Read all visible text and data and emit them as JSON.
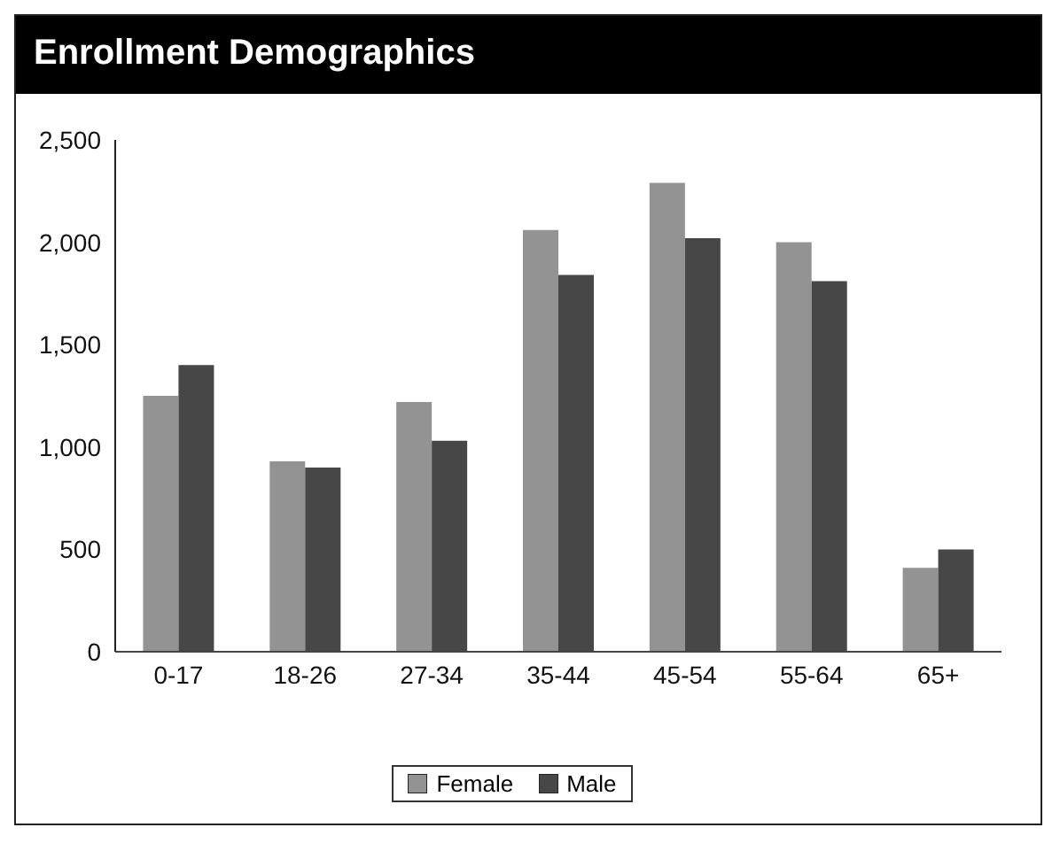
{
  "chart_data": {
    "type": "bar",
    "title": "Enrollment Demographics",
    "categories": [
      "0-17",
      "18-26",
      "27-34",
      "35-44",
      "45-54",
      "55-64",
      "65+"
    ],
    "series": [
      {
        "name": "Female",
        "color": "#939393",
        "values": [
          1250,
          930,
          1220,
          2060,
          2290,
          2000,
          410
        ]
      },
      {
        "name": "Male",
        "color": "#474747",
        "values": [
          1400,
          900,
          1030,
          1840,
          2020,
          1810,
          500
        ]
      }
    ],
    "ylim": [
      0,
      2500
    ],
    "yticks": [
      0,
      {
        "value": 500,
        "label": "500"
      },
      {
        "value": 1000,
        "label": "1,000"
      },
      {
        "value": 1500,
        "label": "1,500"
      },
      {
        "value": 2000,
        "label": "2,000"
      },
      {
        "value": 2500,
        "label": "2,500"
      }
    ],
    "grid": false,
    "legend": "bottom"
  }
}
